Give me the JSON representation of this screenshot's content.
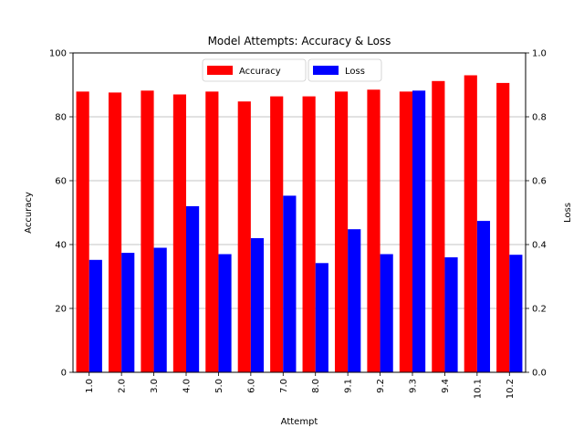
{
  "chart_data": {
    "type": "bar",
    "title": "Model Attempts: Accuracy & Loss",
    "xlabel": "Attempt",
    "ylabel": "Accuracy",
    "y2label": "Loss",
    "categories": [
      "1.0",
      "2.0",
      "3.0",
      "4.0",
      "5.0",
      "6.0",
      "7.0",
      "8.0",
      "9.1",
      "9.2",
      "9.3",
      "9.4",
      "10.1",
      "10.2"
    ],
    "series": [
      {
        "name": "Accuracy",
        "axis": "left",
        "color": "#ff0000",
        "values": [
          87.9,
          87.6,
          88.2,
          87.0,
          87.9,
          84.8,
          86.4,
          86.4,
          87.9,
          88.5,
          87.9,
          91.2,
          93.0,
          90.6
        ]
      },
      {
        "name": "Loss",
        "axis": "right",
        "color": "#0000ff",
        "values": [
          0.352,
          0.374,
          0.39,
          0.52,
          0.37,
          0.42,
          0.553,
          0.342,
          0.448,
          0.37,
          0.882,
          0.36,
          0.474,
          0.368
        ]
      }
    ],
    "ylim": [
      0,
      100
    ],
    "y2lim": [
      0,
      1.0
    ],
    "yticks": [
      "0",
      "20",
      "40",
      "60",
      "80",
      "100"
    ],
    "y2ticks": [
      "0.0",
      "0.2",
      "0.4",
      "0.6",
      "0.8",
      "1.0"
    ],
    "grid": "horizontal",
    "legend_position": "top-center"
  }
}
